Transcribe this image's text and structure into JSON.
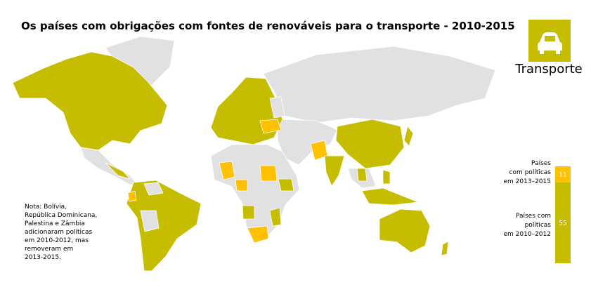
{
  "title": "Os países com obrigações com fontes de renováveis para o transporte - 2010-2015",
  "icon_label": "Transporte",
  "note": [
    "Nota: Bolívia,",
    "República Dominicana,",
    "Palestina e Zâmbia",
    "adicionaram políticas",
    "em 2010-2012, mas",
    "removeram em",
    "2013-2015."
  ],
  "legend": {
    "segments": [
      {
        "label": [
          "Países",
          "com políticas",
          "em 2013–2015"
        ],
        "value": 11,
        "color": "#ffc000"
      },
      {
        "label": [
          "Países com",
          "políticas",
          "em 2010–2012"
        ],
        "value": 55,
        "color": "#c6bd00"
      }
    ]
  }
}
